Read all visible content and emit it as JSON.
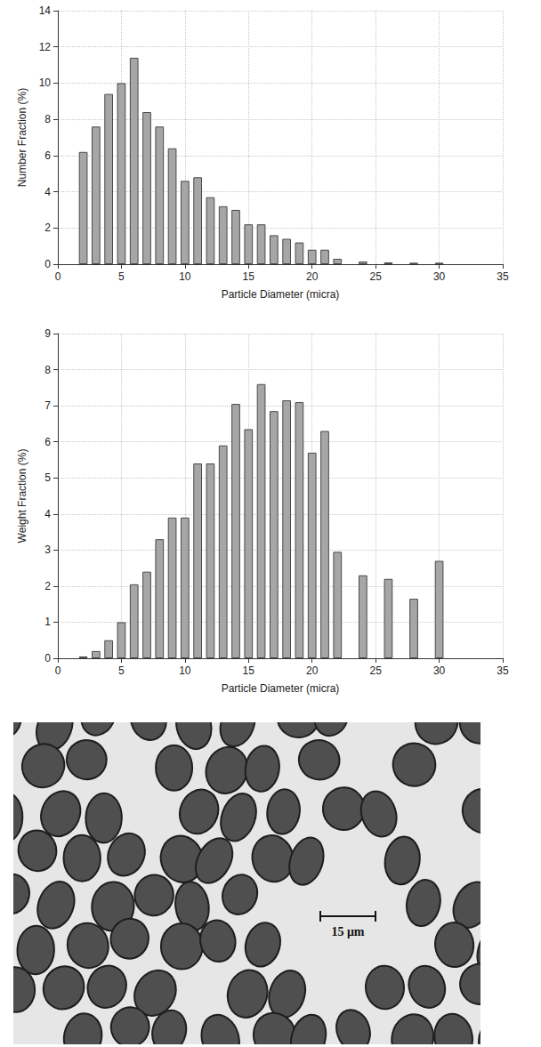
{
  "chart_data": [
    {
      "type": "bar",
      "x": [
        2,
        3,
        4,
        5,
        6,
        7,
        8,
        9,
        10,
        11,
        12,
        13,
        14,
        15,
        16,
        17,
        18,
        19,
        20,
        21,
        22,
        24,
        26,
        28,
        30
      ],
      "values": [
        6.2,
        7.6,
        9.4,
        10.0,
        11.4,
        8.4,
        7.6,
        6.4,
        4.6,
        4.8,
        3.7,
        3.2,
        3.0,
        2.2,
        2.2,
        1.6,
        1.4,
        1.2,
        0.8,
        0.8,
        0.3,
        0.15,
        0.1,
        0.08,
        0.08
      ],
      "color": "#a6a6a6",
      "x_label": "Particle Diameter (micra)",
      "y_label": "Number Fraction (%)",
      "xlim": [
        0,
        35
      ],
      "xticks": [
        0,
        5,
        10,
        15,
        20,
        25,
        30,
        35
      ],
      "ylim": [
        0,
        14
      ],
      "yticks": [
        0,
        2,
        4,
        6,
        8,
        10,
        12,
        14
      ],
      "grid": true
    },
    {
      "type": "bar",
      "x": [
        2,
        3,
        4,
        5,
        6,
        7,
        8,
        9,
        10,
        11,
        12,
        13,
        14,
        15,
        16,
        17,
        18,
        19,
        20,
        21,
        22,
        24,
        26,
        28,
        30
      ],
      "values": [
        0.05,
        0.2,
        0.5,
        1.0,
        2.05,
        2.4,
        3.3,
        3.9,
        3.9,
        5.4,
        5.4,
        5.9,
        7.05,
        6.35,
        7.6,
        6.85,
        7.15,
        7.1,
        5.7,
        6.3,
        2.95,
        2.3,
        2.2,
        1.65,
        2.7
      ],
      "color": "#a6a6a6",
      "x_label": "Particle Diameter (micra)",
      "y_label": "Weight Fraction (%)",
      "xlim": [
        0,
        35
      ],
      "xticks": [
        0,
        5,
        10,
        15,
        20,
        25,
        30,
        35
      ],
      "ylim": [
        0,
        9
      ],
      "yticks": [
        0,
        1,
        2,
        3,
        4,
        5,
        6,
        7,
        8,
        9
      ],
      "grid": true
    }
  ],
  "micrograph": {
    "scale_bar": "15 μm"
  }
}
